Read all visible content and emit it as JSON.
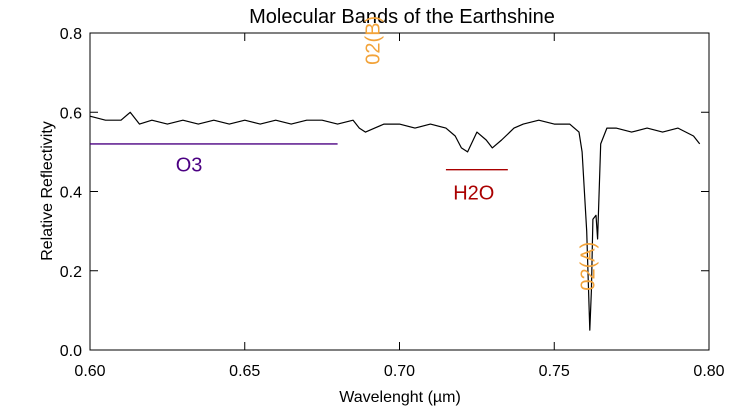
{
  "chart_data": {
    "type": "line",
    "title": "Molecular Bands of the Earthshine",
    "xlabel": "Wavelenght (µm)",
    "ylabel": "Relative Reflectivity",
    "xlim": [
      0.6,
      0.8
    ],
    "ylim": [
      0.0,
      0.8
    ],
    "x_ticks": [
      "0.60",
      "0.65",
      "0.70",
      "0.75",
      "0.80"
    ],
    "y_ticks": [
      "0.0",
      "0.2",
      "0.4",
      "0.6",
      "0.8"
    ],
    "grid": false,
    "series": [
      {
        "x": [
          0.6,
          0.605,
          0.61,
          0.613,
          0.616,
          0.62,
          0.625,
          0.63,
          0.635,
          0.64,
          0.645,
          0.65,
          0.655,
          0.66,
          0.665,
          0.67,
          0.675,
          0.68,
          0.685,
          0.687,
          0.689,
          0.692,
          0.695,
          0.7,
          0.705,
          0.71,
          0.715,
          0.718,
          0.72,
          0.722,
          0.725,
          0.728,
          0.73,
          0.733,
          0.737,
          0.74,
          0.745,
          0.75,
          0.755,
          0.758,
          0.759,
          0.7605,
          0.7615,
          0.762,
          0.7625,
          0.7635,
          0.764,
          0.765,
          0.767,
          0.77,
          0.775,
          0.78,
          0.785,
          0.79,
          0.795,
          0.797
        ],
        "y": [
          0.59,
          0.58,
          0.58,
          0.6,
          0.57,
          0.58,
          0.57,
          0.58,
          0.57,
          0.58,
          0.57,
          0.58,
          0.57,
          0.58,
          0.57,
          0.58,
          0.58,
          0.57,
          0.58,
          0.56,
          0.55,
          0.56,
          0.57,
          0.57,
          0.56,
          0.57,
          0.56,
          0.54,
          0.51,
          0.5,
          0.55,
          0.53,
          0.51,
          0.53,
          0.56,
          0.57,
          0.58,
          0.57,
          0.57,
          0.55,
          0.5,
          0.3,
          0.05,
          0.15,
          0.33,
          0.34,
          0.28,
          0.52,
          0.56,
          0.56,
          0.55,
          0.56,
          0.55,
          0.56,
          0.54,
          0.52
        ]
      }
    ],
    "annotations": [
      {
        "label": "O3",
        "color": "#4b0082",
        "line": {
          "x1": 0.6,
          "x2": 0.68,
          "y": 0.52
        },
        "text_x": 0.632,
        "text_y": 0.45,
        "rotate": false
      },
      {
        "label": "H2O",
        "color": "#aa0000",
        "line": {
          "x1": 0.715,
          "x2": 0.735,
          "y": 0.455
        },
        "text_x": 0.724,
        "text_y": 0.38,
        "rotate": false
      },
      {
        "label": "02(B)",
        "color": "#f2a33a",
        "text_x": 0.691,
        "text_y": 0.72,
        "rotate": true
      },
      {
        "label": "02(A)",
        "color": "#f2a33a",
        "text_x": 0.7605,
        "text_y": 0.15,
        "rotate": true
      }
    ]
  }
}
